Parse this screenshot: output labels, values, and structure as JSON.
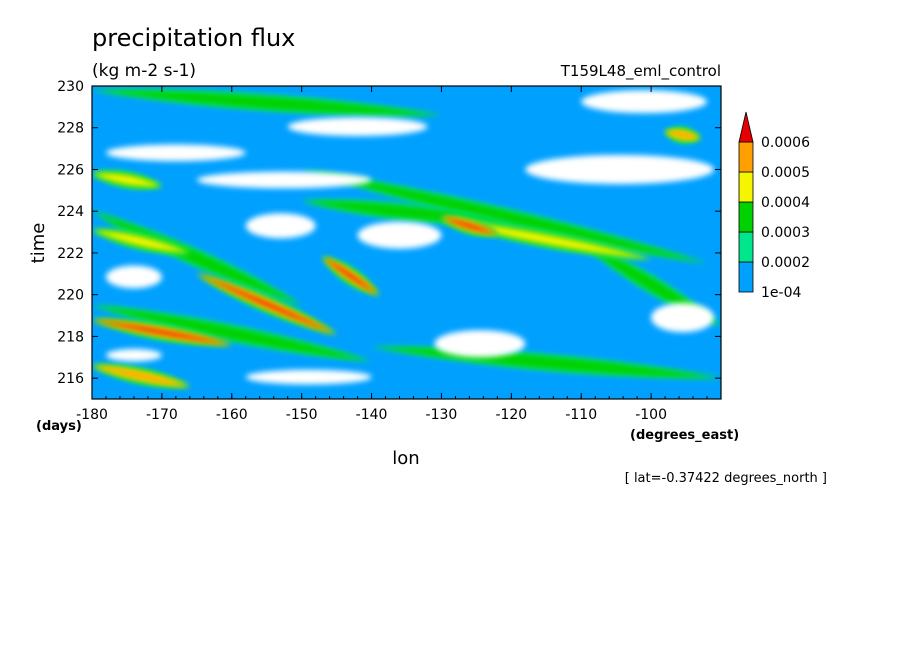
{
  "chart_data": {
    "type": "heatmap",
    "title": "precipitation flux",
    "units": "(kg m-2 s-1)",
    "run_label": "T159L48_eml_control",
    "xlabel": "lon",
    "ylabel": "time",
    "x_units": "(degrees_east)",
    "y_units": "(days)",
    "xlim": [
      -180,
      -90
    ],
    "ylim": [
      215,
      230
    ],
    "x_ticks": [
      -180,
      -170,
      -160,
      -150,
      -140,
      -130,
      -120,
      -110,
      -100
    ],
    "y_ticks": [
      216,
      218,
      220,
      222,
      224,
      226,
      228,
      230
    ],
    "x_tick_labels": [
      "-180",
      "-170",
      "-160",
      "-150",
      "-140",
      "-130",
      "-120",
      "-110",
      "-100"
    ],
    "y_tick_labels": [
      "216",
      "218",
      "220",
      "222",
      "224",
      "226",
      "228",
      "230"
    ],
    "colorbar": {
      "levels": [
        0.0001,
        0.0002,
        0.0003,
        0.0004,
        0.0005,
        0.0006
      ],
      "labels": [
        "1e-04",
        "0.0002",
        "0.0003",
        "0.0004",
        "0.0005",
        "0.0006"
      ],
      "colors": [
        "#ffffff",
        "#00a0ff",
        "#00e68c",
        "#00d200",
        "#f5f500",
        "#ffa000",
        "#e60000"
      ]
    },
    "footnote": "[ lat=-0.37422 degrees_north ]",
    "background_level_color": "#00a0ff",
    "features": [
      {
        "kind": "band",
        "lon0": -180,
        "t0": 218.8,
        "lon1": -160,
        "t1": 217.6,
        "level": 6
      },
      {
        "kind": "band",
        "lon0": -165,
        "t0": 221.0,
        "lon1": -145,
        "t1": 218.1,
        "level": 6
      },
      {
        "kind": "band",
        "lon0": -180,
        "t0": 216.6,
        "lon1": -166,
        "t1": 215.6,
        "level": 5
      },
      {
        "kind": "band",
        "lon0": -147,
        "t0": 221.8,
        "lon1": -139,
        "t1": 220.0,
        "level": 6
      },
      {
        "kind": "band",
        "lon0": -130,
        "t0": 223.7,
        "lon1": -122,
        "t1": 222.9,
        "level": 6
      },
      {
        "kind": "band",
        "lon0": -180,
        "t0": 223.1,
        "lon1": -166,
        "t1": 222.0,
        "level": 4
      },
      {
        "kind": "band",
        "lon0": -150,
        "t0": 226.0,
        "lon1": -92,
        "t1": 221.5,
        "level": 3
      },
      {
        "kind": "band",
        "lon0": -130,
        "t0": 223.6,
        "lon1": -100,
        "t1": 221.7,
        "level": 4
      },
      {
        "kind": "band",
        "lon0": -180,
        "t0": 225.8,
        "lon1": -170,
        "t1": 225.2,
        "level": 4
      },
      {
        "kind": "band",
        "lon0": -98,
        "t0": 227.8,
        "lon1": -93,
        "t1": 227.5,
        "level": 5
      },
      {
        "kind": "band",
        "lon0": -180,
        "t0": 229.8,
        "lon1": -130,
        "t1": 228.6,
        "level": 3
      },
      {
        "kind": "band",
        "lon0": -150,
        "t0": 224.5,
        "lon1": -120,
        "t1": 223.4,
        "level": 3
      },
      {
        "kind": "band",
        "lon0": -180,
        "t0": 224.0,
        "lon1": -150,
        "t1": 219.5,
        "level": 3
      },
      {
        "kind": "band",
        "lon0": -180,
        "t0": 219.5,
        "lon1": -140,
        "t1": 216.8,
        "level": 3
      },
      {
        "kind": "band",
        "lon0": -140,
        "t0": 217.5,
        "lon1": -90,
        "t1": 216.0,
        "level": 3
      },
      {
        "kind": "band",
        "lon0": -110,
        "t0": 222.5,
        "lon1": -90,
        "t1": 218.5,
        "level": 3
      },
      {
        "kind": "gap",
        "lon0": -152,
        "t0": 228.5,
        "lon1": -132,
        "t1": 227.6
      },
      {
        "kind": "gap",
        "lon0": -178,
        "t0": 227.2,
        "lon1": -158,
        "t1": 226.4
      },
      {
        "kind": "gap",
        "lon0": -165,
        "t0": 225.9,
        "lon1": -140,
        "t1": 225.1
      },
      {
        "kind": "gap",
        "lon0": -118,
        "t0": 226.7,
        "lon1": -91,
        "t1": 225.3
      },
      {
        "kind": "gap",
        "lon0": -142,
        "t0": 223.5,
        "lon1": -130,
        "t1": 222.2
      },
      {
        "kind": "gap",
        "lon0": -178,
        "t0": 221.4,
        "lon1": -170,
        "t1": 220.3
      },
      {
        "kind": "gap",
        "lon0": -158,
        "t0": 223.9,
        "lon1": -148,
        "t1": 222.7
      },
      {
        "kind": "gap",
        "lon0": -100,
        "t0": 219.6,
        "lon1": -91,
        "t1": 218.2
      },
      {
        "kind": "gap",
        "lon0": -131,
        "t0": 218.3,
        "lon1": -118,
        "t1": 217.0
      },
      {
        "kind": "gap",
        "lon0": -158,
        "t0": 216.4,
        "lon1": -140,
        "t1": 215.7
      },
      {
        "kind": "gap",
        "lon0": -178,
        "t0": 217.4,
        "lon1": -170,
        "t1": 216.8
      },
      {
        "kind": "gap",
        "lon0": -110,
        "t0": 229.8,
        "lon1": -92,
        "t1": 228.7
      }
    ]
  }
}
